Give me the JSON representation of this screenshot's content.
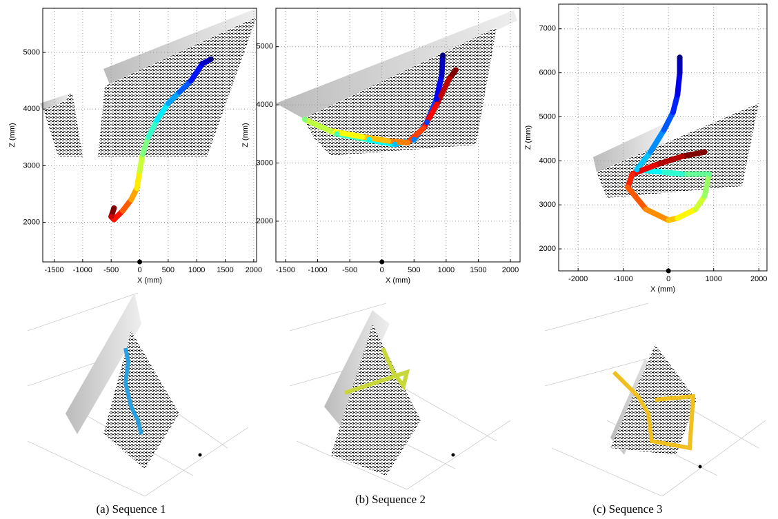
{
  "chart_data": [
    {
      "type": "scatter",
      "caption": "(a) Sequence 1",
      "x_label": "X (mm)",
      "y_label": "Z (mm)",
      "colormap": "jet",
      "grid": true,
      "xlim": [
        -1700,
        2050
      ],
      "ylim": [
        1300,
        5780
      ],
      "xticks": [
        -1500,
        -1000,
        -500,
        0,
        500,
        1000,
        1500,
        2000
      ],
      "yticks": [
        2000,
        3000,
        4000,
        5000
      ],
      "camera": {
        "x": 0,
        "y": 1300
      },
      "x": [
        1250,
        1100,
        900,
        700,
        500,
        300,
        150,
        50,
        0,
        -50,
        -150,
        -300,
        -450,
        -500,
        -450
      ],
      "values": [
        4880,
        4800,
        4500,
        4300,
        4100,
        3800,
        3500,
        3200,
        2900,
        2600,
        2400,
        2200,
        2050,
        2100,
        2250
      ]
    },
    {
      "type": "scatter",
      "caption": "(b) Sequence 2",
      "x_label": "X (mm)",
      "y_label": "Z (mm)",
      "colormap": "jet",
      "grid": true,
      "xlim": [
        -1650,
        2150
      ],
      "ylim": [
        1300,
        5660
      ],
      "xticks": [
        -1500,
        -1000,
        -500,
        0,
        500,
        1000,
        1500,
        2000
      ],
      "yticks": [
        2000,
        3000,
        4000,
        5000
      ],
      "camera": {
        "x": 0,
        "y": 1300
      },
      "x": [
        950,
        930,
        850,
        700,
        500,
        200,
        -200,
        -700,
        -1200,
        -800,
        -300,
        100,
        400,
        650,
        850,
        1050,
        1150
      ],
      "values": [
        4850,
        4500,
        4100,
        3700,
        3400,
        3320,
        3400,
        3500,
        3750,
        3550,
        3450,
        3380,
        3350,
        3600,
        4000,
        4450,
        4600
      ]
    },
    {
      "type": "scatter",
      "caption": "(c) Sequence 3",
      "x_label": "X (mm)",
      "y_label": "Z (mm)",
      "colormap": "jet",
      "grid": true,
      "xlim": [
        -2430,
        2180
      ],
      "ylim": [
        1500,
        7560
      ],
      "xticks": [
        -2000,
        -1000,
        0,
        1000,
        2000
      ],
      "yticks": [
        2000,
        3000,
        4000,
        5000,
        6000,
        7000
      ],
      "camera": {
        "x": 0,
        "y": 1500
      },
      "x": [
        250,
        250,
        200,
        100,
        -100,
        -400,
        -700,
        -200,
        300,
        900,
        800,
        600,
        200,
        0,
        -500,
        -900,
        -800,
        -300,
        300,
        800
      ],
      "values": [
        6350,
        6000,
        5500,
        5100,
        4700,
        4200,
        3800,
        3750,
        3700,
        3700,
        3200,
        2900,
        2700,
        2650,
        2900,
        3400,
        3700,
        3900,
        4100,
        4200
      ]
    }
  ]
}
